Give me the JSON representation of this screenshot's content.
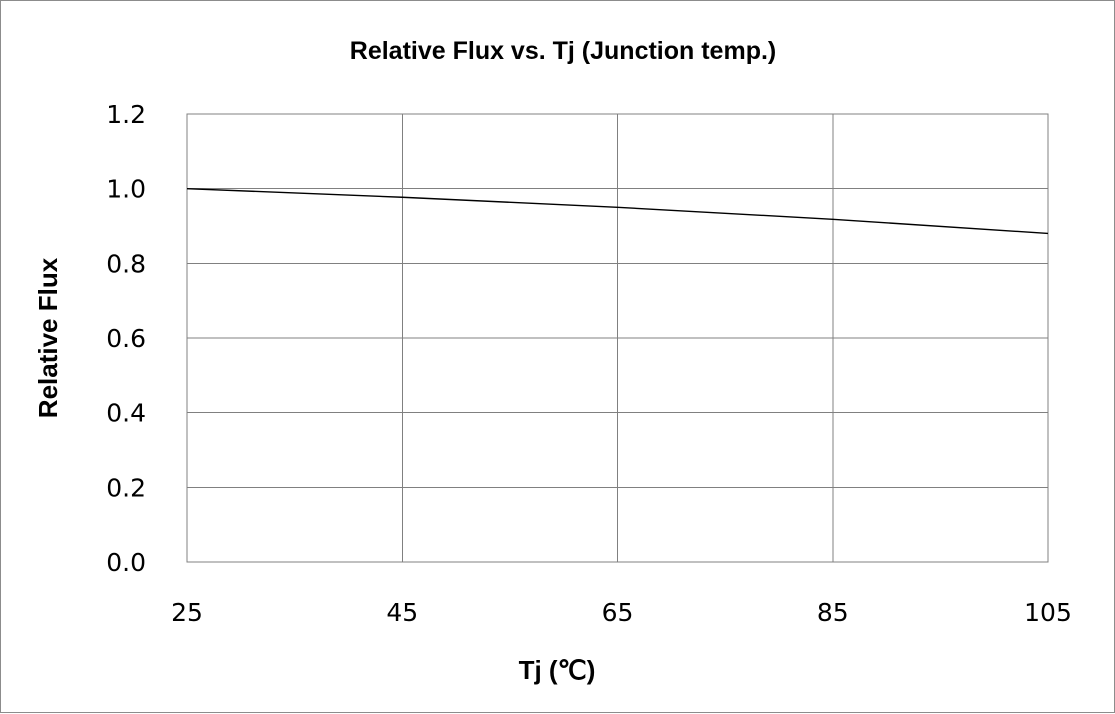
{
  "chart_data": {
    "type": "line",
    "title": "Relative Flux vs. Tj (Junction temp.)",
    "xlabel": "Tj (℃)",
    "ylabel": "Relative Flux",
    "x": [
      25,
      45,
      65,
      85,
      105
    ],
    "xlim": [
      25,
      105
    ],
    "ylim": [
      0,
      1.2
    ],
    "x_ticks": [
      "25",
      "45",
      "65",
      "85",
      "105"
    ],
    "y_ticks": [
      "0.0",
      "0.2",
      "0.4",
      "0.6",
      "0.8",
      "1.0",
      "1.2"
    ],
    "grid": true,
    "series": [
      {
        "values": [
          1.0,
          0.977,
          0.95,
          0.918,
          0.88
        ],
        "color": "#000000"
      }
    ]
  }
}
